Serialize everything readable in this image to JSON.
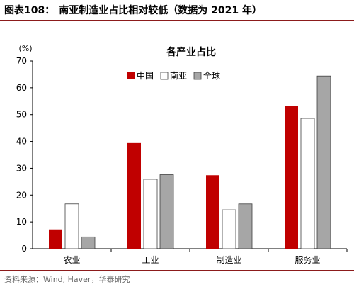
{
  "figure": {
    "number": "图表108：",
    "title": "南亚制造业占比相对较低（数据为 2021 年）",
    "source": "资料来源：Wind, Haver，华泰研究"
  },
  "colors": {
    "accent_rule": "#8c1b1b",
    "china": "#c00000",
    "south_asia": "#ffffff",
    "global": "#a6a6a6",
    "outline": "#404040"
  },
  "chart_data": {
    "type": "bar",
    "title": "各产业占比",
    "ylabel": "(%)",
    "ylim": [
      0,
      70
    ],
    "yticks": [
      0,
      10,
      20,
      30,
      40,
      50,
      60,
      70
    ],
    "categories": [
      "农业",
      "工业",
      "制造业",
      "服务业"
    ],
    "series": [
      {
        "name": "中国",
        "values": [
          7.2,
          39.4,
          27.4,
          53.3
        ]
      },
      {
        "name": "南亚",
        "values": [
          16.7,
          25.9,
          14.5,
          48.6
        ]
      },
      {
        "name": "全球",
        "values": [
          4.4,
          27.6,
          16.7,
          64.4
        ]
      }
    ],
    "grid": false,
    "legend": "top"
  }
}
